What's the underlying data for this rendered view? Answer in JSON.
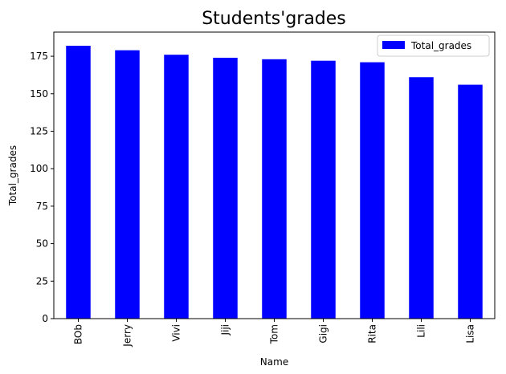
{
  "chart_data": {
    "type": "bar",
    "title": "Students'grades",
    "xlabel": "Name",
    "ylabel": "Total_grades",
    "categories": [
      "BOb",
      "Jerry",
      "Vivi",
      "Jiji",
      "Tom",
      "Gigi",
      "Rita",
      "Lili",
      "Lisa"
    ],
    "series": [
      {
        "name": "Total_grades",
        "color": "#0000ff",
        "values": [
          182,
          179,
          176,
          174,
          173,
          172,
          171,
          161,
          156
        ]
      }
    ],
    "ylim": [
      0,
      191.1
    ],
    "yticks": [
      "0",
      "25",
      "50",
      "75",
      "100",
      "125",
      "150",
      "175"
    ],
    "grid": false,
    "legend_position": "top-right",
    "x_tick_rotation": "vertical"
  }
}
